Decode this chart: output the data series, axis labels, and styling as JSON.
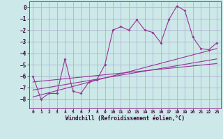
{
  "xlabel": "Windchill (Refroidissement éolien,°C)",
  "bg_color": "#cce8e8",
  "grid_color": "#aaaacc",
  "line_color": "#993399",
  "scatter_x": [
    0,
    1,
    2,
    3,
    4,
    5,
    6,
    7,
    8,
    9,
    10,
    11,
    12,
    13,
    14,
    15,
    16,
    17,
    18,
    19,
    20,
    21,
    22,
    23
  ],
  "scatter_y": [
    -6.0,
    -8.0,
    -7.5,
    -7.5,
    -4.5,
    -7.3,
    -7.5,
    -6.5,
    -6.3,
    -5.0,
    -2.0,
    -1.7,
    -2.0,
    -1.1,
    -2.0,
    -2.2,
    -3.1,
    -1.1,
    0.1,
    -0.3,
    -2.6,
    -3.6,
    -3.7,
    -3.1
  ],
  "line1_x": [
    0,
    23
  ],
  "line1_y": [
    -7.8,
    -3.6
  ],
  "line2_x": [
    0,
    23
  ],
  "line2_y": [
    -7.2,
    -4.5
  ],
  "line3_x": [
    0,
    23
  ],
  "line3_y": [
    -6.5,
    -4.9
  ],
  "ylim": [
    -8.8,
    0.5
  ],
  "xlim": [
    -0.5,
    23.5
  ],
  "yticks": [
    0,
    -1,
    -2,
    -3,
    -4,
    -5,
    -6,
    -7,
    -8
  ],
  "xticks": [
    0,
    1,
    2,
    3,
    4,
    5,
    6,
    7,
    8,
    9,
    10,
    11,
    12,
    13,
    14,
    15,
    16,
    17,
    18,
    19,
    20,
    21,
    22,
    23
  ]
}
